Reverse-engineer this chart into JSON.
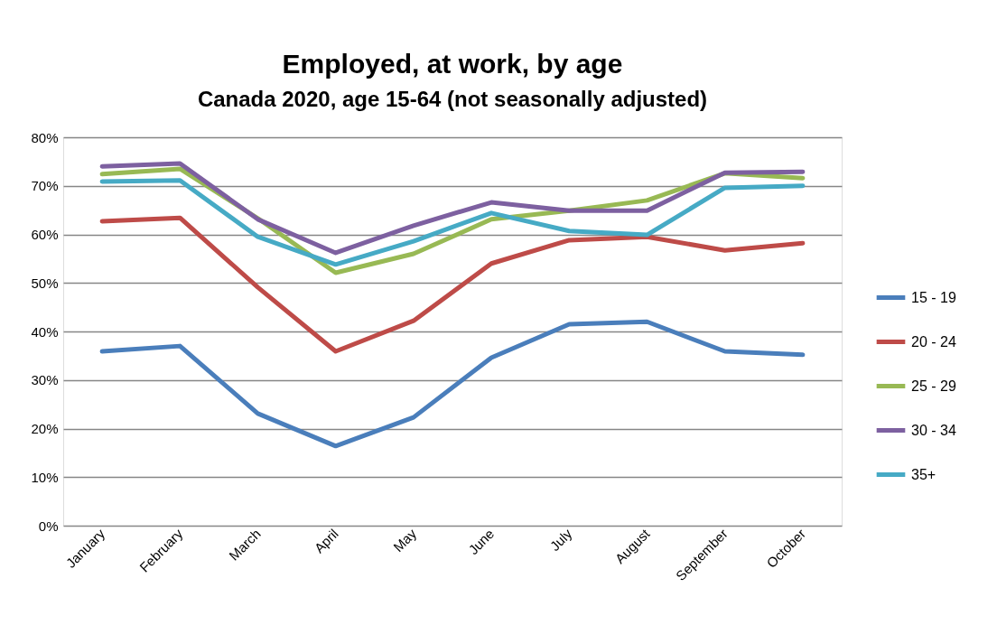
{
  "chart_data": {
    "type": "line",
    "title": "Employed, at work, by age",
    "subtitle": "Canada 2020, age 15-64 (not seasonally adjusted)",
    "categories": [
      "January",
      "February",
      "March",
      "April",
      "May",
      "June",
      "July",
      "August",
      "September",
      "October"
    ],
    "series": [
      {
        "name": "15 - 19",
        "color": "#4a7ebb",
        "values": [
          35.9,
          37.0,
          23.1,
          16.4,
          22.3,
          34.6,
          41.5,
          42.0,
          35.9,
          35.2
        ]
      },
      {
        "name": "20 - 24",
        "color": "#be4b48",
        "values": [
          62.7,
          63.4,
          49.1,
          35.9,
          42.2,
          54.0,
          58.8,
          59.5,
          56.7,
          58.2
        ]
      },
      {
        "name": "25 - 29",
        "color": "#98b954",
        "values": [
          72.4,
          73.5,
          63.3,
          52.1,
          56.0,
          63.1,
          64.9,
          67.0,
          72.6,
          71.6
        ]
      },
      {
        "name": "30 - 34",
        "color": "#7d60a0",
        "values": [
          74.0,
          74.6,
          63.1,
          56.2,
          61.8,
          66.6,
          64.9,
          64.9,
          72.7,
          72.9
        ]
      },
      {
        "name": "35+",
        "color": "#46aac5",
        "values": [
          70.9,
          71.1,
          59.5,
          53.8,
          58.6,
          64.4,
          60.7,
          59.9,
          69.6,
          70.0
        ]
      }
    ],
    "ylim": [
      0,
      80
    ],
    "yticks": [
      {
        "value": 0,
        "label": "0%"
      },
      {
        "value": 10,
        "label": "10%"
      },
      {
        "value": 20,
        "label": "20%"
      },
      {
        "value": 30,
        "label": "30%"
      },
      {
        "value": 40,
        "label": "40%"
      },
      {
        "value": 50,
        "label": "50%"
      },
      {
        "value": 60,
        "label": "60%"
      },
      {
        "value": 70,
        "label": "70%"
      },
      {
        "value": 80,
        "label": "80%"
      }
    ],
    "grid": "y",
    "legend": "right",
    "line_style": "solid"
  }
}
